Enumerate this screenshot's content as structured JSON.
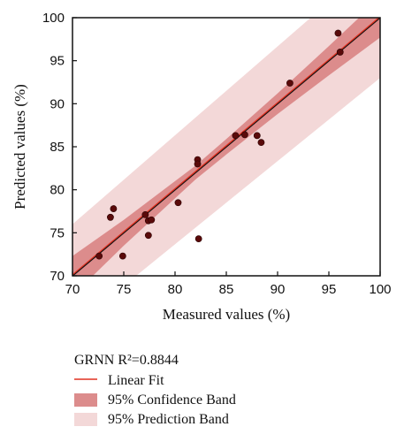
{
  "chart_data": {
    "type": "scatter",
    "title": "",
    "xlabel": "Measured values (%)",
    "ylabel": "Predicted values (%)",
    "xlim": [
      70,
      100
    ],
    "ylim": [
      70,
      100
    ],
    "xticks": [
      70,
      75,
      80,
      85,
      90,
      95,
      100
    ],
    "yticks": [
      70,
      75,
      80,
      85,
      90,
      95,
      100
    ],
    "grid": false,
    "legend_title": "GRNN R²=0.8844",
    "legend_position": "bottom",
    "series": [
      {
        "kind": "points",
        "color": "#5a0a0a",
        "points": [
          [
            72.6,
            72.3
          ],
          [
            73.7,
            76.8
          ],
          [
            74.0,
            77.8
          ],
          [
            74.9,
            72.3
          ],
          [
            77.1,
            77.1
          ],
          [
            77.4,
            74.7
          ],
          [
            77.4,
            76.4
          ],
          [
            77.7,
            76.5
          ],
          [
            80.3,
            78.5
          ],
          [
            82.2,
            83.5
          ],
          [
            82.2,
            83.0
          ],
          [
            82.3,
            74.3
          ],
          [
            85.9,
            86.3
          ],
          [
            86.8,
            86.4
          ],
          [
            88.0,
            86.3
          ],
          [
            88.4,
            85.5
          ],
          [
            91.2,
            92.4
          ],
          [
            95.9,
            98.2
          ],
          [
            96.1,
            96.0
          ]
        ]
      },
      {
        "kind": "line",
        "name": "Linear Fit",
        "color": "#e03020",
        "x": [
          70,
          100
        ],
        "y": [
          70.0,
          100.0
        ]
      },
      {
        "kind": "band",
        "name": "95% Confidence Band",
        "color": "#dc8c8c",
        "x": [
          70,
          75,
          80,
          82,
          85,
          90,
          95,
          100
        ],
        "lower": [
          67.7,
          73.5,
          79.0,
          81.2,
          84.1,
          88.8,
          93.3,
          97.7
        ],
        "upper": [
          72.3,
          76.5,
          81.0,
          82.8,
          85.9,
          91.2,
          96.7,
          102.3
        ]
      },
      {
        "kind": "band",
        "name": "95% Prediction Band",
        "color": "#f3d8d8",
        "x": [
          70,
          100
        ],
        "lower": [
          64.0,
          93.0
        ],
        "upper": [
          76.0,
          107.0
        ]
      }
    ],
    "identity_line_color": "#111111"
  }
}
